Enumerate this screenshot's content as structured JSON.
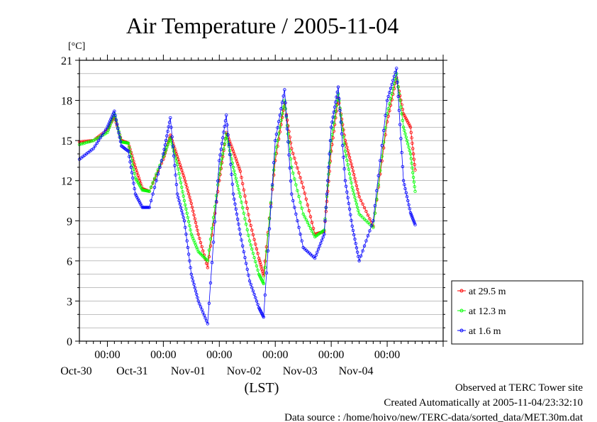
{
  "chart_data": {
    "type": "line",
    "title": "Air Temperature / 2005-11-04",
    "ylabel": "[°C]",
    "xlabel": "(LST)",
    "ylim": [
      0,
      21
    ],
    "yticks": [
      0,
      3,
      6,
      9,
      12,
      15,
      18,
      21
    ],
    "xlim": [
      "2005-10-29 12:00",
      "2005-11-05 00:00"
    ],
    "x_tick_time": "00:00",
    "x_tick_dates": [
      "Oct-30",
      "Oct-31",
      "Nov-01",
      "Nov-02",
      "Nov-03",
      "Nov-04"
    ],
    "grid": true,
    "legend_position": "bottom-right",
    "series": [
      {
        "name": "at 29.5 m",
        "color": "#ff0000",
        "points": [
          [
            "2005-10-29 12:00",
            14.9
          ],
          [
            "2005-10-29 18:00",
            15.0
          ],
          [
            "2005-10-30 00:00",
            15.8
          ],
          [
            "2005-10-30 03:00",
            16.8
          ],
          [
            "2005-10-30 06:00",
            15.0
          ],
          [
            "2005-10-30 09:00",
            14.8
          ],
          [
            "2005-10-30 12:00",
            13.0
          ],
          [
            "2005-10-30 15:00",
            11.4
          ],
          [
            "2005-10-30 18:00",
            11.2
          ],
          [
            "2005-10-31 00:00",
            13.6
          ],
          [
            "2005-10-31 03:00",
            15.4
          ],
          [
            "2005-10-31 06:00",
            13.8
          ],
          [
            "2005-10-31 09:00",
            12.2
          ],
          [
            "2005-10-31 12:00",
            10.3
          ],
          [
            "2005-10-31 15:00",
            8.0
          ],
          [
            "2005-10-31 19:00",
            5.5
          ],
          [
            "2005-11-01 00:00",
            12.0
          ],
          [
            "2005-11-01 03:00",
            15.6
          ],
          [
            "2005-11-01 06:00",
            14.2
          ],
          [
            "2005-11-01 09:00",
            12.7
          ],
          [
            "2005-11-01 13:00",
            9.0
          ],
          [
            "2005-11-01 17:00",
            6.2
          ],
          [
            "2005-11-01 19:00",
            4.9
          ],
          [
            "2005-11-02 00:00",
            13.5
          ],
          [
            "2005-11-02 04:00",
            17.8
          ],
          [
            "2005-11-02 07:00",
            14.4
          ],
          [
            "2005-11-02 12:00",
            11.5
          ],
          [
            "2005-11-02 17:00",
            8.0
          ],
          [
            "2005-11-02 21:00",
            8.2
          ],
          [
            "2005-11-03 00:00",
            14.2
          ],
          [
            "2005-11-03 03:00",
            18.2
          ],
          [
            "2005-11-03 06:00",
            15.0
          ],
          [
            "2005-11-03 09:00",
            13.0
          ],
          [
            "2005-11-03 12:00",
            10.8
          ],
          [
            "2005-11-03 18:00",
            8.6
          ],
          [
            "2005-11-04 00:00",
            16.4
          ],
          [
            "2005-11-04 04:00",
            19.7
          ],
          [
            "2005-11-04 07:00",
            17.0
          ],
          [
            "2005-11-04 10:00",
            16.0
          ],
          [
            "2005-11-04 12:00",
            12.8
          ]
        ]
      },
      {
        "name": "at 12.3 m",
        "color": "#00ff00",
        "points": [
          [
            "2005-10-29 12:00",
            14.7
          ],
          [
            "2005-10-29 18:00",
            15.0
          ],
          [
            "2005-10-30 00:00",
            15.6
          ],
          [
            "2005-10-30 03:00",
            17.0
          ],
          [
            "2005-10-30 06:00",
            14.9
          ],
          [
            "2005-10-30 09:00",
            14.8
          ],
          [
            "2005-10-30 12:00",
            12.2
          ],
          [
            "2005-10-30 15:00",
            11.3
          ],
          [
            "2005-10-30 18:00",
            11.2
          ],
          [
            "2005-10-31 00:00",
            13.8
          ],
          [
            "2005-10-31 03:00",
            15.2
          ],
          [
            "2005-10-31 06:00",
            13.2
          ],
          [
            "2005-10-31 09:00",
            10.5
          ],
          [
            "2005-10-31 12:00",
            8.0
          ],
          [
            "2005-10-31 15:00",
            6.7
          ],
          [
            "2005-10-31 19:00",
            6.0
          ],
          [
            "2005-11-01 00:00",
            12.5
          ],
          [
            "2005-11-01 03:00",
            15.5
          ],
          [
            "2005-11-01 06:00",
            13.0
          ],
          [
            "2005-11-01 09:00",
            10.8
          ],
          [
            "2005-11-01 13:00",
            7.5
          ],
          [
            "2005-11-01 17:00",
            5.0
          ],
          [
            "2005-11-01 19:00",
            4.3
          ],
          [
            "2005-11-02 00:00",
            14.0
          ],
          [
            "2005-11-02 04:00",
            18.0
          ],
          [
            "2005-11-02 07:00",
            13.0
          ],
          [
            "2005-11-02 12:00",
            9.5
          ],
          [
            "2005-11-02 17:00",
            7.8
          ],
          [
            "2005-11-02 21:00",
            8.3
          ],
          [
            "2005-11-03 00:00",
            15.0
          ],
          [
            "2005-11-03 03:00",
            18.5
          ],
          [
            "2005-11-03 06:00",
            14.2
          ],
          [
            "2005-11-03 09:00",
            11.5
          ],
          [
            "2005-11-03 12:00",
            9.5
          ],
          [
            "2005-11-03 18:00",
            8.5
          ],
          [
            "2005-11-04 00:00",
            17.0
          ],
          [
            "2005-11-04 04:00",
            20.0
          ],
          [
            "2005-11-04 07:00",
            16.0
          ],
          [
            "2005-11-04 10:00",
            14.0
          ],
          [
            "2005-11-04 12:00",
            11.2
          ]
        ]
      },
      {
        "name": "at 1.6 m",
        "color": "#0000ff",
        "points": [
          [
            "2005-10-29 12:00",
            13.6
          ],
          [
            "2005-10-29 18:00",
            14.4
          ],
          [
            "2005-10-30 00:00",
            16.0
          ],
          [
            "2005-10-30 03:00",
            17.2
          ],
          [
            "2005-10-30 06:00",
            14.6
          ],
          [
            "2005-10-30 09:00",
            14.2
          ],
          [
            "2005-10-30 12:00",
            11.0
          ],
          [
            "2005-10-30 15:00",
            10.0
          ],
          [
            "2005-10-30 18:00",
            10.0
          ],
          [
            "2005-10-31 00:00",
            14.0
          ],
          [
            "2005-10-31 03:00",
            16.7
          ],
          [
            "2005-10-31 06:00",
            11.0
          ],
          [
            "2005-10-31 09:00",
            9.0
          ],
          [
            "2005-10-31 12:00",
            5.0
          ],
          [
            "2005-10-31 15:00",
            3.0
          ],
          [
            "2005-10-31 19:00",
            1.3
          ],
          [
            "2005-11-01 00:00",
            13.5
          ],
          [
            "2005-11-01 03:00",
            16.9
          ],
          [
            "2005-11-01 06:00",
            11.0
          ],
          [
            "2005-11-01 09:00",
            8.0
          ],
          [
            "2005-11-01 13:00",
            4.5
          ],
          [
            "2005-11-01 17:00",
            2.5
          ],
          [
            "2005-11-01 19:00",
            1.8
          ],
          [
            "2005-11-02 00:00",
            15.0
          ],
          [
            "2005-11-02 04:00",
            18.8
          ],
          [
            "2005-11-02 07:00",
            11.0
          ],
          [
            "2005-11-02 12:00",
            7.0
          ],
          [
            "2005-11-02 17:00",
            6.2
          ],
          [
            "2005-11-02 21:00",
            8.0
          ],
          [
            "2005-11-03 00:00",
            16.0
          ],
          [
            "2005-11-03 03:00",
            19.0
          ],
          [
            "2005-11-03 06:00",
            12.0
          ],
          [
            "2005-11-03 09:00",
            8.6
          ],
          [
            "2005-11-03 12:00",
            6.0
          ],
          [
            "2005-11-03 18:00",
            9.0
          ],
          [
            "2005-11-04 00:00",
            18.0
          ],
          [
            "2005-11-04 04:00",
            20.4
          ],
          [
            "2005-11-04 07:00",
            12.0
          ],
          [
            "2005-11-04 10:00",
            9.6
          ],
          [
            "2005-11-04 12:00",
            8.7
          ]
        ]
      }
    ]
  },
  "footer": {
    "line1": "Observed at TERC Tower site",
    "line2": "Created Automatically at 2005-11-04/23:32:10",
    "line3": "Data source : /home/hoivo/new/TERC-data/sorted_data/MET.30m.dat"
  }
}
